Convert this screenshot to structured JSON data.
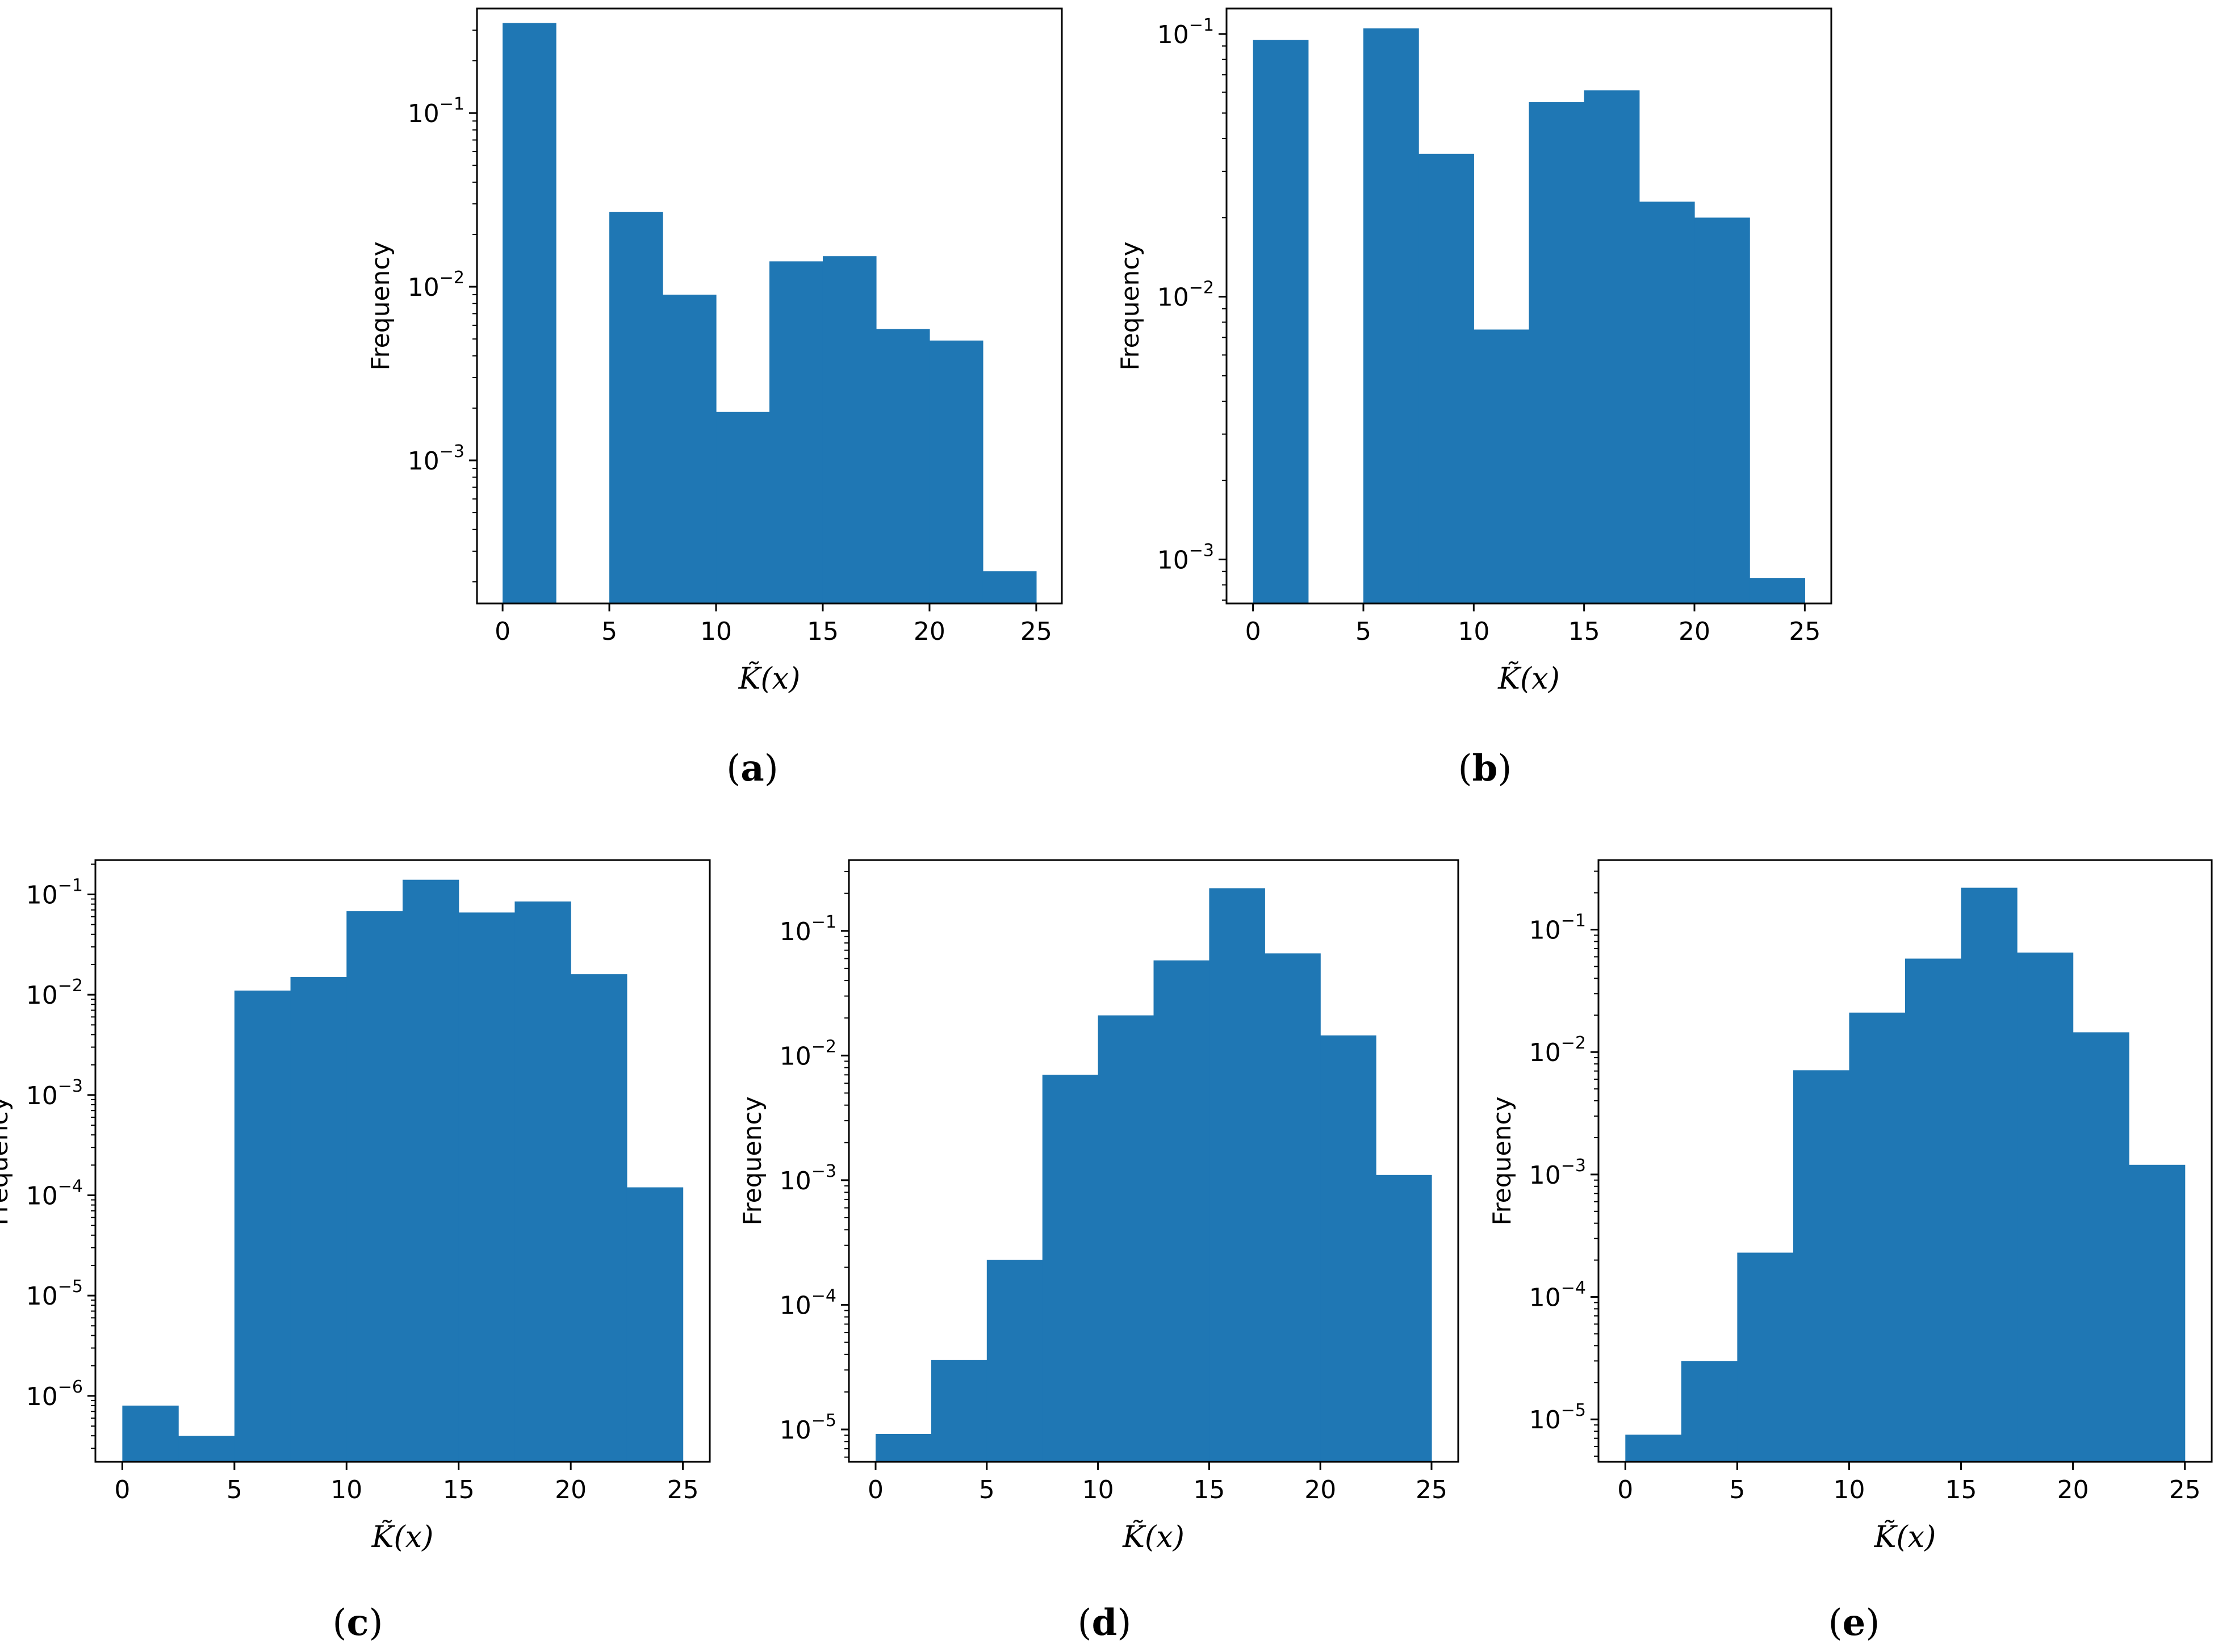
{
  "colors": {
    "bar": "#1f77b4",
    "axes": "#000000",
    "background": "#ffffff"
  },
  "chart_data": [
    {
      "type": "bar",
      "panel": "(a)",
      "panel_letter": "a",
      "xlabel": "K̃(x)",
      "ylabel": "Frequency",
      "yscale": "log",
      "xlim": [
        -1.2,
        26.2
      ],
      "ylim": [
        0.00015,
        0.4
      ],
      "xticks": [
        0,
        5,
        10,
        15,
        20,
        25
      ],
      "yticks": [
        {
          "value": 0.1,
          "base": "10",
          "exp": "−1"
        },
        {
          "value": 0.01,
          "base": "10",
          "exp": "−2"
        },
        {
          "value": 0.001,
          "base": "10",
          "exp": "−3"
        }
      ],
      "bin_edges": [
        0,
        2.5,
        5,
        7.5,
        10,
        12.5,
        15,
        17.5,
        20,
        22.5,
        25
      ],
      "values": [
        0.33,
        0,
        0.027,
        0.009,
        0.0019,
        0.014,
        0.015,
        0.0057,
        0.0049,
        0.00023
      ]
    },
    {
      "type": "bar",
      "panel": "(b)",
      "panel_letter": "b",
      "xlabel": "K̃(x)",
      "ylabel": "Frequency",
      "yscale": "log",
      "xlim": [
        -1.2,
        26.2
      ],
      "ylim": [
        0.00068,
        0.125
      ],
      "xticks": [
        0,
        5,
        10,
        15,
        20,
        25
      ],
      "yticks": [
        {
          "value": 0.1,
          "base": "10",
          "exp": "−1"
        },
        {
          "value": 0.01,
          "base": "10",
          "exp": "−2"
        },
        {
          "value": 0.001,
          "base": "10",
          "exp": "−3"
        }
      ],
      "bin_edges": [
        0,
        2.5,
        5,
        7.5,
        10,
        12.5,
        15,
        17.5,
        20,
        22.5,
        25
      ],
      "values": [
        0.095,
        0,
        0.105,
        0.035,
        0.0075,
        0.055,
        0.061,
        0.023,
        0.02,
        0.00085
      ]
    },
    {
      "type": "bar",
      "panel": "(c)",
      "panel_letter": "c",
      "xlabel": "K̃(x)",
      "ylabel": "Frequency",
      "yscale": "log",
      "xlim": [
        -1.2,
        26.2
      ],
      "ylim": [
        2.2e-07,
        0.22
      ],
      "xticks": [
        0,
        5,
        10,
        15,
        20,
        25
      ],
      "yticks": [
        {
          "value": 0.1,
          "base": "10",
          "exp": "−1"
        },
        {
          "value": 0.01,
          "base": "10",
          "exp": "−2"
        },
        {
          "value": 0.001,
          "base": "10",
          "exp": "−3"
        },
        {
          "value": 0.0001,
          "base": "10",
          "exp": "−4"
        },
        {
          "value": 1e-05,
          "base": "10",
          "exp": "−5"
        },
        {
          "value": 1e-06,
          "base": "10",
          "exp": "−6"
        }
      ],
      "bin_edges": [
        0,
        2.5,
        5,
        7.5,
        10,
        12.5,
        15,
        17.5,
        20,
        22.5,
        25
      ],
      "values": [
        8e-07,
        4e-07,
        0.011,
        0.015,
        0.068,
        0.14,
        0.066,
        0.085,
        0.016,
        0.00012
      ]
    },
    {
      "type": "bar",
      "panel": "(d)",
      "panel_letter": "d",
      "xlabel": "K̃(x)",
      "ylabel": "Frequency",
      "yscale": "log",
      "xlim": [
        -1.2,
        26.2
      ],
      "ylim": [
        5.5e-06,
        0.37
      ],
      "xticks": [
        0,
        5,
        10,
        15,
        20,
        25
      ],
      "yticks": [
        {
          "value": 0.1,
          "base": "10",
          "exp": "−1"
        },
        {
          "value": 0.01,
          "base": "10",
          "exp": "−2"
        },
        {
          "value": 0.001,
          "base": "10",
          "exp": "−3"
        },
        {
          "value": 0.0001,
          "base": "10",
          "exp": "−4"
        },
        {
          "value": 1e-05,
          "base": "10",
          "exp": "−5"
        }
      ],
      "bin_edges": [
        0,
        2.5,
        5,
        7.5,
        10,
        12.5,
        15,
        17.5,
        20,
        22.5,
        25
      ],
      "values": [
        9.2e-06,
        3.6e-05,
        0.00023,
        0.007,
        0.021,
        0.058,
        0.22,
        0.066,
        0.0145,
        0.0011
      ]
    },
    {
      "type": "bar",
      "panel": "(e)",
      "panel_letter": "e",
      "xlabel": "K̃(x)",
      "ylabel": "Frequency",
      "yscale": "log",
      "xlim": [
        -1.2,
        26.2
      ],
      "ylim": [
        4.5e-06,
        0.37
      ],
      "xticks": [
        0,
        5,
        10,
        15,
        20,
        25
      ],
      "yticks": [
        {
          "value": 0.1,
          "base": "10",
          "exp": "−1"
        },
        {
          "value": 0.01,
          "base": "10",
          "exp": "−2"
        },
        {
          "value": 0.001,
          "base": "10",
          "exp": "−3"
        },
        {
          "value": 0.0001,
          "base": "10",
          "exp": "−4"
        },
        {
          "value": 1e-05,
          "base": "10",
          "exp": "−5"
        }
      ],
      "bin_edges": [
        0,
        2.5,
        5,
        7.5,
        10,
        12.5,
        15,
        17.5,
        20,
        22.5,
        25
      ],
      "values": [
        7.5e-06,
        3e-05,
        0.00023,
        0.0071,
        0.021,
        0.058,
        0.22,
        0.065,
        0.0145,
        0.0012
      ]
    }
  ]
}
